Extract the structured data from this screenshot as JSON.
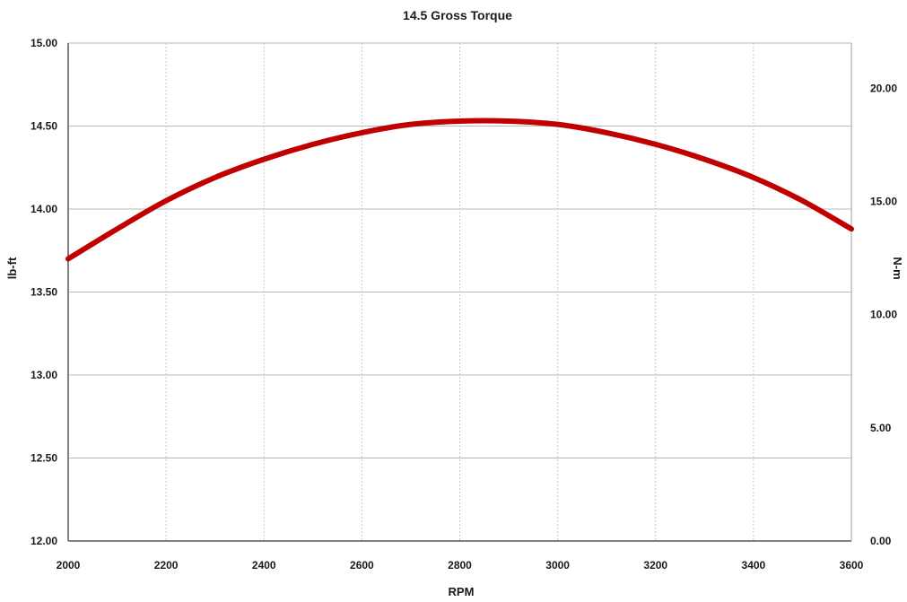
{
  "chart_data": {
    "type": "line",
    "title": "14.5 Gross Torque",
    "xlabel": "RPM",
    "ylabel": "lb-ft",
    "y2label": "N-m",
    "xlim": [
      2000,
      3600
    ],
    "ylim": [
      12.0,
      15.0
    ],
    "y2lim": [
      0.0,
      22.0
    ],
    "x_ticks": [
      "2000",
      "2200",
      "2400",
      "2600",
      "2800",
      "3000",
      "3200",
      "3400",
      "3600"
    ],
    "y_ticks": [
      "12.00",
      "12.50",
      "13.00",
      "13.50",
      "14.00",
      "14.50",
      "15.00"
    ],
    "y2_ticks": [
      "0.00",
      "5.00",
      "10.00",
      "15.00",
      "20.00"
    ],
    "grid": true,
    "series": [
      {
        "color": "#c00000",
        "x": [
          2000,
          2100,
          2200,
          2300,
          2400,
          2500,
          2600,
          2700,
          2800,
          2900,
          3000,
          3100,
          3200,
          3300,
          3400,
          3500,
          3600
        ],
        "y": [
          13.7,
          13.88,
          14.05,
          14.19,
          14.3,
          14.39,
          14.46,
          14.51,
          14.53,
          14.53,
          14.51,
          14.46,
          14.39,
          14.3,
          14.19,
          14.05,
          13.88
        ]
      }
    ]
  }
}
